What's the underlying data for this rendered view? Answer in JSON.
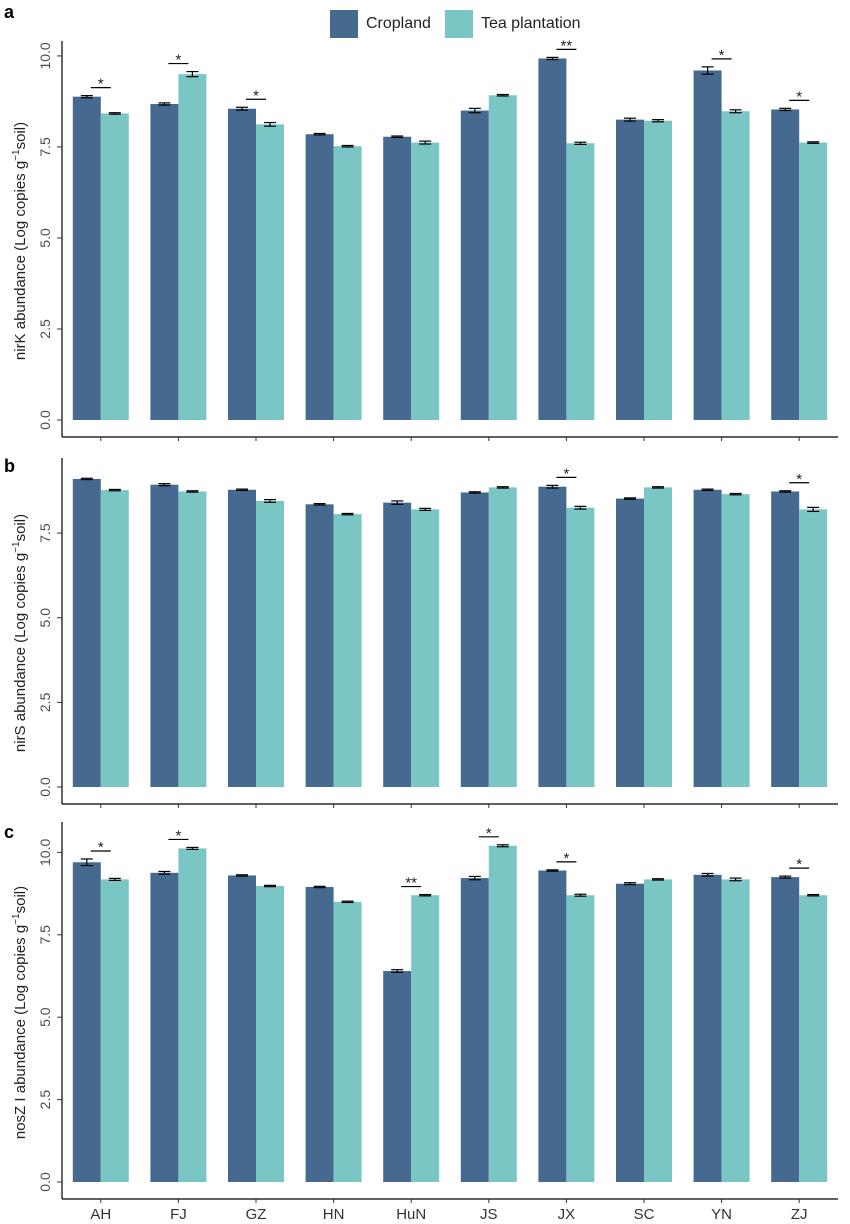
{
  "legend": {
    "items": [
      {
        "label": "Cropland",
        "color": "#466a8f"
      },
      {
        "label": "Tea plantation",
        "color": "#7ac6c5"
      }
    ]
  },
  "chart_data": [
    {
      "type": "bar",
      "panel_label": "a",
      "ylabel_main": "nirK abundance (Log copies g",
      "ylabel_sup": "−1",
      "ylabel_tail": "soil)",
      "ylim": [
        0,
        10.3
      ],
      "yticks": [
        "0.0",
        "2.5",
        "5.0",
        "7.5",
        "10.0"
      ],
      "ytick_values": [
        0,
        2.5,
        5,
        7.5,
        10
      ],
      "categories": [
        "AH",
        "FJ",
        "GZ",
        "HN",
        "HuN",
        "JS",
        "JX",
        "SC",
        "YN",
        "ZJ"
      ],
      "series": [
        {
          "name": "Cropland",
          "values": [
            8.88,
            8.68,
            8.55,
            7.85,
            7.78,
            8.5,
            9.93,
            8.25,
            9.6,
            8.53
          ],
          "errors": [
            0.03,
            0.03,
            0.04,
            0.02,
            0.02,
            0.06,
            0.03,
            0.04,
            0.1,
            0.03
          ]
        },
        {
          "name": "Tea plantation",
          "values": [
            8.42,
            9.5,
            8.12,
            7.52,
            7.62,
            8.92,
            7.6,
            8.22,
            8.48,
            7.62
          ],
          "errors": [
            0.02,
            0.07,
            0.05,
            0.02,
            0.04,
            0.02,
            0.03,
            0.03,
            0.04,
            0.02
          ]
        }
      ],
      "significance": [
        "*",
        "*",
        "*",
        "",
        "",
        "",
        "**",
        "",
        "*",
        "*"
      ]
    },
    {
      "type": "bar",
      "panel_label": "b",
      "ylabel_main": "nirS abundance (Log copies g",
      "ylabel_sup": "−1",
      "ylabel_tail": "soil)",
      "ylim": [
        0,
        9.6
      ],
      "yticks": [
        "0.0",
        "2.5",
        "5.0",
        "7.5"
      ],
      "ytick_values": [
        0,
        2.5,
        5,
        7.5
      ],
      "categories": [
        "AH",
        "FJ",
        "GZ",
        "HN",
        "HuN",
        "JS",
        "JX",
        "SC",
        "YN",
        "ZJ"
      ],
      "series": [
        {
          "name": "Cropland",
          "values": [
            9.1,
            8.93,
            8.78,
            8.35,
            8.4,
            8.7,
            8.87,
            8.52,
            8.78,
            8.73
          ],
          "errors": [
            0.02,
            0.03,
            0.02,
            0.02,
            0.05,
            0.02,
            0.04,
            0.02,
            0.02,
            0.02
          ]
        },
        {
          "name": "Tea plantation",
          "values": [
            8.77,
            8.73,
            8.45,
            8.06,
            8.2,
            8.85,
            8.25,
            8.85,
            8.65,
            8.2
          ],
          "errors": [
            0.02,
            0.02,
            0.04,
            0.02,
            0.03,
            0.02,
            0.04,
            0.02,
            0.02,
            0.06
          ]
        }
      ],
      "significance": [
        "",
        "",
        "",
        "",
        "",
        "",
        "*",
        "",
        "",
        "*"
      ]
    },
    {
      "type": "bar",
      "panel_label": "c",
      "ylabel_main": "nosZ I  abundance (Log copies g",
      "ylabel_sup": "−1",
      "ylabel_tail": "soil)",
      "ylim": [
        0,
        10.8
      ],
      "yticks": [
        "0.0",
        "2.5",
        "5.0",
        "7.5",
        "10.0"
      ],
      "ytick_values": [
        0,
        2.5,
        5,
        7.5,
        10
      ],
      "categories": [
        "AH",
        "FJ",
        "GZ",
        "HN",
        "HuN",
        "JS",
        "JX",
        "SC",
        "YN",
        "ZJ"
      ],
      "series": [
        {
          "name": "Cropland",
          "values": [
            9.7,
            9.38,
            9.3,
            8.95,
            6.4,
            9.22,
            9.45,
            9.05,
            9.32,
            9.25
          ],
          "errors": [
            0.1,
            0.04,
            0.02,
            0.02,
            0.04,
            0.05,
            0.02,
            0.03,
            0.04,
            0.03
          ]
        },
        {
          "name": "Tea plantation",
          "values": [
            9.18,
            10.12,
            8.98,
            8.5,
            8.7,
            10.2,
            8.7,
            9.18,
            9.18,
            8.7
          ],
          "errors": [
            0.03,
            0.03,
            0.02,
            0.02,
            0.02,
            0.03,
            0.03,
            0.02,
            0.04,
            0.02
          ]
        }
      ],
      "significance": [
        "*",
        "*",
        "",
        "",
        "**",
        "*",
        "*",
        "",
        "",
        "*"
      ]
    }
  ]
}
